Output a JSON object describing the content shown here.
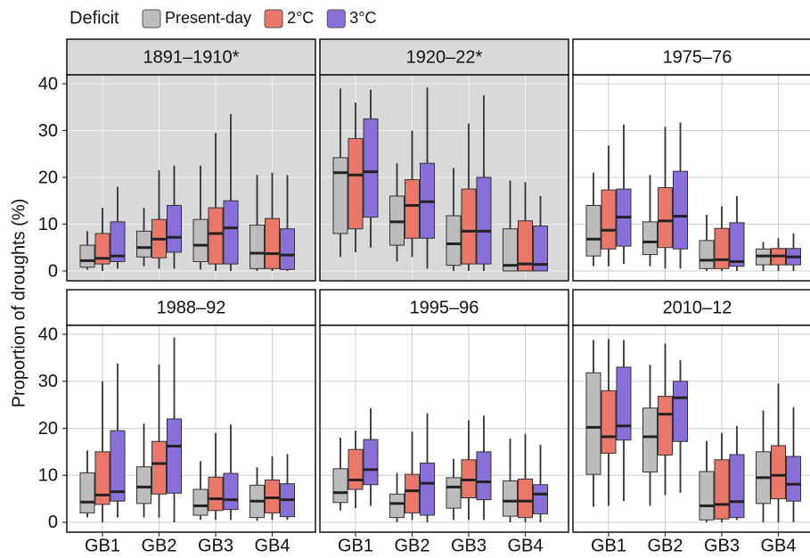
{
  "chart_data": {
    "type": "box",
    "legend_title": "Deficit",
    "ylabel": "Proportion of droughts (%)",
    "categories": [
      "GB1",
      "GB2",
      "GB3",
      "GB4"
    ],
    "series": [
      {
        "name": "Present-day",
        "color": "#bdbdbd"
      },
      {
        "name": "2°C",
        "color": "#e9786b"
      },
      {
        "name": "3°C",
        "color": "#8a6fd9"
      }
    ],
    "ylim": [
      -2.1,
      41.9
    ],
    "yticks": [
      0,
      10,
      20,
      30,
      40
    ],
    "grid": true,
    "facets": [
      {
        "title": "1891–1910*",
        "highlight": true,
        "groups": [
          {
            "low": [
              0.3,
              1,
              0.3,
              0
            ],
            "q1": [
              0.8,
              3,
              2,
              0.5
            ],
            "median": [
              2.2,
              5,
              5.5,
              3.8
            ],
            "q3": [
              5.5,
              8.5,
              11,
              9.8
            ],
            "high": [
              8.5,
              13.5,
              22.5,
              20.5
            ]
          },
          {
            "low": [
              0,
              0.5,
              0,
              0
            ],
            "q1": [
              1.5,
              2.8,
              1.5,
              0.5
            ],
            "median": [
              2.7,
              6.8,
              8,
              3.7
            ],
            "q3": [
              8,
              11,
              13.5,
              11.2
            ],
            "high": [
              13.5,
              21.5,
              29.5,
              21
            ]
          },
          {
            "low": [
              0.5,
              0.5,
              0,
              0
            ],
            "q1": [
              2,
              4,
              1.5,
              0.3
            ],
            "median": [
              3.2,
              7.2,
              9.2,
              3.4
            ],
            "q3": [
              10.5,
              14,
              15,
              9
            ],
            "high": [
              18,
              22.5,
              33.5,
              20.5
            ]
          }
        ]
      },
      {
        "title": "1920–22*",
        "highlight": true,
        "groups": [
          {
            "low": [
              3,
              2,
              0,
              0
            ],
            "q1": [
              8,
              5.5,
              1.2,
              0
            ],
            "median": [
              21,
              10.5,
              5.8,
              1.2
            ],
            "q3": [
              24.2,
              16,
              11.8,
              9
            ],
            "high": [
              39,
              23,
              22,
              19.3
            ]
          },
          {
            "low": [
              4,
              3,
              0,
              0
            ],
            "q1": [
              9,
              7,
              1.5,
              0
            ],
            "median": [
              20.5,
              14,
              8.5,
              1.5
            ],
            "q3": [
              28.3,
              19.5,
              17.5,
              10.7
            ],
            "high": [
              36,
              30,
              31.5,
              19
            ]
          },
          {
            "low": [
              5,
              0.5,
              0,
              0
            ],
            "q1": [
              11.5,
              7,
              1.5,
              0
            ],
            "median": [
              21.2,
              14.8,
              8.5,
              1.4
            ],
            "q3": [
              32.5,
              23,
              20,
              9.6
            ],
            "high": [
              38.7,
              39.2,
              37.5,
              16
            ]
          }
        ]
      },
      {
        "title": "1975–76",
        "highlight": false,
        "groups": [
          {
            "low": [
              1,
              1,
              0,
              0
            ],
            "q1": [
              3.2,
              3.5,
              0.5,
              1.3
            ],
            "median": [
              6.8,
              6.2,
              2.3,
              3.2
            ],
            "q3": [
              14,
              10.5,
              6.5,
              4.7
            ],
            "high": [
              21,
              20.5,
              12,
              6.2
            ]
          },
          {
            "low": [
              1,
              0.5,
              0,
              0
            ],
            "q1": [
              4.7,
              5,
              0.5,
              1.3
            ],
            "median": [
              8.7,
              10.7,
              2.4,
              3.2
            ],
            "q3": [
              17.3,
              17.8,
              9.1,
              4.8
            ],
            "high": [
              26.8,
              30.8,
              13.8,
              7
            ]
          },
          {
            "low": [
              1.5,
              0.5,
              0,
              0
            ],
            "q1": [
              5.3,
              4.7,
              1,
              1.3
            ],
            "median": [
              11.5,
              11.7,
              2,
              3
            ],
            "q3": [
              17.5,
              21.3,
              10.3,
              4.8
            ],
            "high": [
              31.3,
              31.7,
              16,
              8
            ]
          }
        ]
      },
      {
        "title": "1988–92",
        "highlight": false,
        "groups": [
          {
            "low": [
              1,
              1,
              0.5,
              0.3
            ],
            "q1": [
              2,
              4,
              1.5,
              1
            ],
            "median": [
              4.3,
              7.5,
              3.5,
              4.5
            ],
            "q3": [
              10.5,
              11.8,
              7,
              7.9
            ],
            "high": [
              15.3,
              21,
              13,
              11.7
            ]
          },
          {
            "low": [
              0,
              1,
              0.5,
              0.5
            ],
            "q1": [
              3.8,
              6,
              2.5,
              2
            ],
            "median": [
              5.8,
              12.5,
              5,
              5.2
            ],
            "q3": [
              15,
              17.2,
              9.6,
              9
            ],
            "high": [
              30,
              33.6,
              19,
              14
            ]
          },
          {
            "low": [
              1,
              0,
              0.5,
              0.5
            ],
            "q1": [
              4.5,
              6.2,
              2.7,
              1.2
            ],
            "median": [
              6.5,
              16.2,
              4.8,
              4.8
            ],
            "q3": [
              19.5,
              22,
              10.4,
              8.2
            ],
            "high": [
              33.8,
              39.3,
              20.8,
              14.5
            ]
          }
        ]
      },
      {
        "title": "1995–96",
        "highlight": false,
        "groups": [
          {
            "low": [
              2.5,
              0,
              0.5,
              0
            ],
            "q1": [
              4.2,
              1,
              3,
              1.3
            ],
            "median": [
              6.3,
              4,
              7.5,
              4.5
            ],
            "q3": [
              11.4,
              6,
              9.5,
              8.8
            ],
            "high": [
              18,
              10.5,
              13.5,
              17.8
            ]
          },
          {
            "low": [
              3,
              0.5,
              0.5,
              0
            ],
            "q1": [
              7,
              2,
              5.2,
              1
            ],
            "median": [
              9,
              6.7,
              9,
              4.5
            ],
            "q3": [
              15.5,
              10.2,
              13.3,
              9.2
            ],
            "high": [
              19.5,
              19.3,
              21.7,
              18.8
            ]
          },
          {
            "low": [
              3.5,
              0,
              0.5,
              0
            ],
            "q1": [
              8,
              1.5,
              4.8,
              1.8
            ],
            "median": [
              11.2,
              8.3,
              8.6,
              6
            ],
            "q3": [
              17.6,
              12.6,
              15,
              8
            ],
            "high": [
              24.3,
              23.2,
              22.7,
              16.5
            ]
          }
        ]
      },
      {
        "title": "2010–12",
        "highlight": false,
        "groups": [
          {
            "low": [
              3.3,
              3.5,
              0,
              0
            ],
            "q1": [
              10.2,
              10.7,
              0.5,
              4
            ],
            "median": [
              20.2,
              18.2,
              3.5,
              9.5
            ],
            "q3": [
              31.8,
              24.3,
              10.8,
              15
            ],
            "high": [
              38.8,
              33.5,
              17.3,
              23.8
            ]
          },
          {
            "low": [
              3.5,
              5.8,
              0,
              0
            ],
            "q1": [
              14.7,
              14.3,
              0.7,
              5
            ],
            "median": [
              18.2,
              23,
              3.8,
              10
            ],
            "q3": [
              28,
              26.8,
              13.3,
              16.3
            ],
            "high": [
              39,
              38,
              19,
              29.5
            ]
          },
          {
            "low": [
              4.5,
              6.3,
              0.5,
              0
            ],
            "q1": [
              17.5,
              17.2,
              1,
              4.5
            ],
            "median": [
              20.5,
              26.5,
              4.4,
              8.1
            ],
            "q3": [
              33,
              30,
              14.4,
              14
            ],
            "high": [
              38.8,
              34.5,
              20.5,
              24.5
            ]
          }
        ]
      }
    ]
  }
}
